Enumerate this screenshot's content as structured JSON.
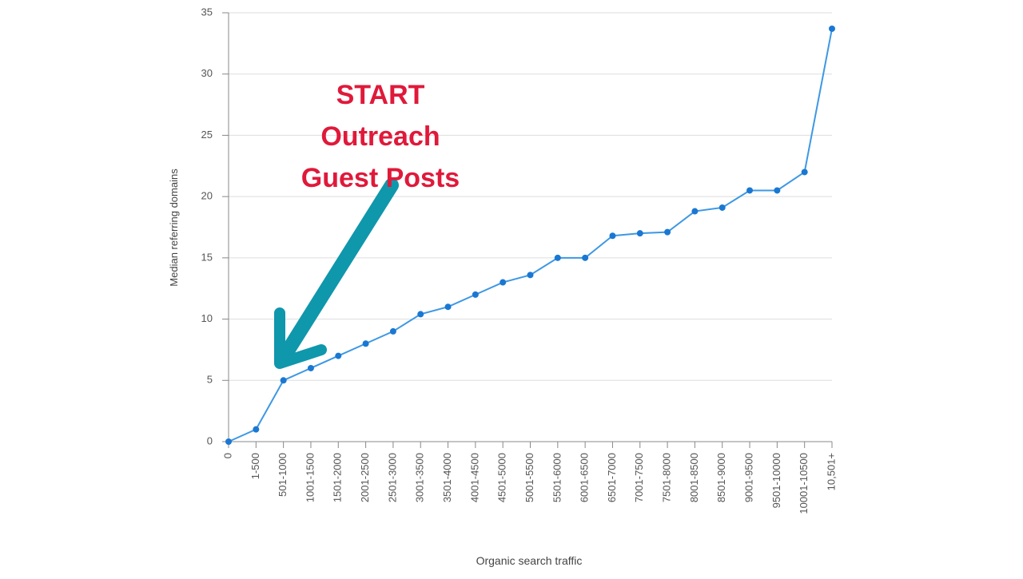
{
  "chart_data": {
    "type": "line",
    "x_label": "Organic search traffic",
    "y_label": "Median referring domains",
    "categories": [
      "0",
      "1-500",
      "501-1000",
      "1001-1500",
      "1501-2000",
      "2001-2500",
      "2501-3000",
      "3001-3500",
      "3501-4000",
      "4001-4500",
      "4501-5000",
      "5001-5500",
      "5501-6000",
      "6001-6500",
      "6501-7000",
      "7001-7500",
      "7501-8000",
      "8001-8500",
      "8501-9000",
      "9001-9500",
      "9501-10000",
      "10001-10500",
      "10,501+"
    ],
    "values": [
      0,
      1,
      5,
      6,
      7,
      8,
      9,
      10.4,
      11,
      12,
      13,
      13.6,
      15,
      15,
      16.8,
      17,
      17.1,
      18.8,
      19.1,
      20.5,
      20.5,
      22,
      33.7
    ],
    "color": "#3d98e3",
    "marker_color": "#1a78d2",
    "ylim": [
      0,
      35
    ],
    "yticks": [
      0,
      5,
      10,
      15,
      20,
      25,
      30,
      35
    ],
    "grid": true,
    "annotations": [
      "START",
      "Outreach",
      "Guest Posts"
    ]
  }
}
